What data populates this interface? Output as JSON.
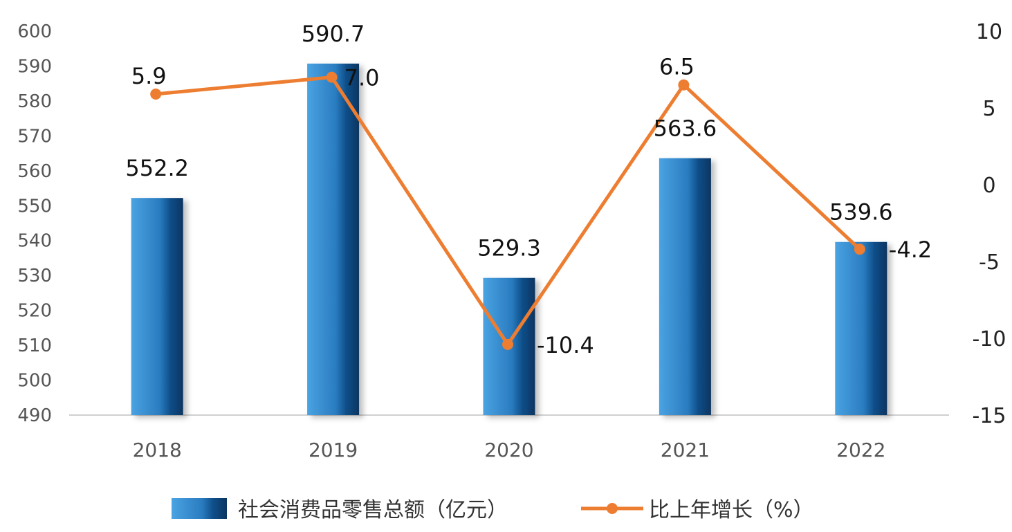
{
  "chart_data": {
    "type": "bar",
    "title": "",
    "xlabel": "",
    "categories": [
      "2018",
      "2019",
      "2020",
      "2021",
      "2022"
    ],
    "series": [
      {
        "name": "社会消费品零售总额（亿元）",
        "type": "bar",
        "axis": "left",
        "values": [
          552.2,
          590.7,
          529.3,
          563.6,
          539.6
        ],
        "labels": [
          "552.2",
          "590.7",
          "529.3",
          "563.6",
          "539.6"
        ],
        "color": "#2f86c8"
      },
      {
        "name": "比上年增长（%）",
        "type": "line",
        "axis": "right",
        "values": [
          5.9,
          7.0,
          -10.4,
          6.5,
          -4.2
        ],
        "labels": [
          "5.9",
          "7.0",
          "-10.4",
          "6.5",
          "-4.2"
        ],
        "color": "#ed7d31"
      }
    ],
    "ylim_left": [
      490,
      600
    ],
    "yticks_left": [
      "600",
      "590",
      "580",
      "570",
      "560",
      "550",
      "540",
      "530",
      "520",
      "510",
      "500",
      "490"
    ],
    "ylim_right": [
      -15,
      10
    ],
    "yticks_right": [
      "10",
      "5",
      "0",
      "-5",
      "-10",
      "-15"
    ],
    "grid": false,
    "legend_position": "bottom"
  }
}
